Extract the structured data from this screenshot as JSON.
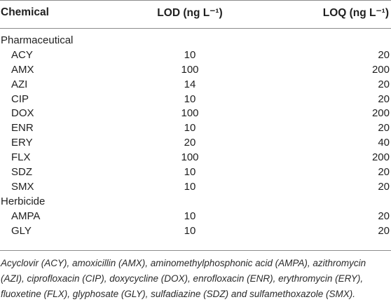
{
  "header": {
    "chemical": "Chemical",
    "lod": "LOD (ng L⁻¹)",
    "loq": "LOQ (ng L⁻¹)"
  },
  "rows": [
    {
      "group": "Pharmaceutical"
    },
    {
      "name": "ACY",
      "lod": "10",
      "loq": "20"
    },
    {
      "name": "AMX",
      "lod": "100",
      "loq": "200"
    },
    {
      "name": "AZI",
      "lod": "14",
      "loq": "20"
    },
    {
      "name": "CIP",
      "lod": "10",
      "loq": "20"
    },
    {
      "name": "DOX",
      "lod": "100",
      "loq": "200"
    },
    {
      "name": "ENR",
      "lod": "10",
      "loq": "20"
    },
    {
      "name": "ERY",
      "lod": "20",
      "loq": "40"
    },
    {
      "name": "FLX",
      "lod": "100",
      "loq": "200"
    },
    {
      "name": "SDZ",
      "lod": "10",
      "loq": "20"
    },
    {
      "name": "SMX",
      "lod": "10",
      "loq": "20"
    },
    {
      "group": "Herbicide"
    },
    {
      "name": "AMPA",
      "lod": "10",
      "loq": "20"
    },
    {
      "name": "GLY",
      "lod": "10",
      "loq": "20"
    }
  ],
  "footnote": "Acyclovir (ACY), amoxicillin (AMX), aminomethylphosphonic acid (AMPA), azithromycin (AZI), ciprofloxacin (CIP), doxycycline (DOX), enrofloxacin (ENR), erythromycin (ERY), fluoxetine (FLX), glyphosate (GLY), sulfadiazine (SDZ) and sulfamethoxazole (SMX)."
}
